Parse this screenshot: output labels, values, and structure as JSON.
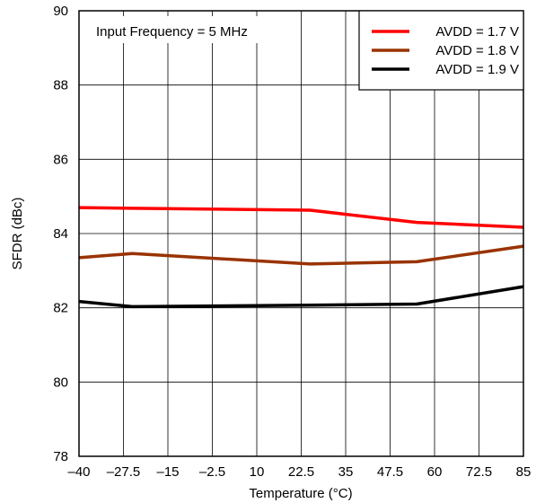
{
  "chart_data": {
    "type": "line",
    "title": "",
    "xlabel": "Temperature (°C)",
    "ylabel": "SFDR (dBc)",
    "xlim": [
      -40,
      85
    ],
    "ylim": [
      78,
      90
    ],
    "x_ticks": [
      -40,
      -27.5,
      -15,
      -2.5,
      10,
      22.5,
      35,
      47.5,
      60,
      72.5,
      85
    ],
    "x_tick_labels": [
      "–40",
      "–27.5",
      "–15",
      "–2.5",
      "10",
      "22.5",
      "35",
      "47.5",
      "60",
      "72.5",
      "85"
    ],
    "y_ticks": [
      78,
      80,
      82,
      84,
      86,
      88,
      90
    ],
    "y_tick_labels": [
      "78",
      "80",
      "82",
      "84",
      "86",
      "88",
      "90"
    ],
    "grid": true,
    "legend_position": "top-right",
    "annotation": "Input Frequency = 5 MHz",
    "series": [
      {
        "name": "AVDD = 1.7 V",
        "color": "#ff0000",
        "x": [
          -40,
          -25,
          25,
          55,
          85
        ],
        "y": [
          84.7,
          84.68,
          84.63,
          84.3,
          84.17
        ]
      },
      {
        "name": "AVDD = 1.8 V",
        "color": "#993300",
        "x": [
          -40,
          -25,
          25,
          55,
          85
        ],
        "y": [
          83.35,
          83.46,
          83.18,
          83.24,
          83.66
        ]
      },
      {
        "name": "AVDD = 1.9 V",
        "color": "#000000",
        "x": [
          -40,
          -25,
          25,
          55,
          85
        ],
        "y": [
          82.17,
          82.03,
          82.07,
          82.1,
          82.57
        ]
      }
    ]
  }
}
